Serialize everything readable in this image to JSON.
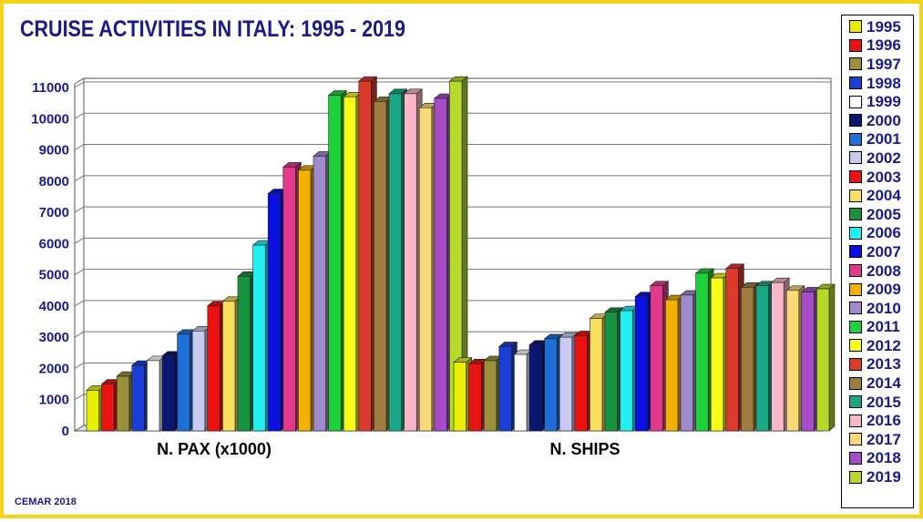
{
  "title": "CRUISE ACTIVITIES IN ITALY: 1995 - 2019",
  "credit": "CEMAR 2018",
  "chart_data": {
    "type": "bar",
    "title": "CRUISE ACTIVITIES IN ITALY: 1995 - 2019",
    "categories": [
      "N. PAX (x1000)",
      "N. SHIPS"
    ],
    "ylim": [
      0,
      11000
    ],
    "yticks": [
      0,
      1000,
      2000,
      3000,
      4000,
      5000,
      6000,
      7000,
      8000,
      9000,
      10000,
      11000
    ],
    "grid": true,
    "legend_position": "right",
    "series": [
      {
        "name": "1995",
        "color": "#e8f000",
        "values": [
          1300,
          2200
        ]
      },
      {
        "name": "1996",
        "color": "#e81414",
        "values": [
          1500,
          2150
        ]
      },
      {
        "name": "1997",
        "color": "#9a8f3a",
        "values": [
          1750,
          2250
        ]
      },
      {
        "name": "1998",
        "color": "#1a3fd6",
        "values": [
          2100,
          2700
        ]
      },
      {
        "name": "1999",
        "color": "#ffffff",
        "values": [
          2250,
          2450
        ]
      },
      {
        "name": "2000",
        "color": "#0c1670",
        "values": [
          2400,
          2750
        ]
      },
      {
        "name": "2001",
        "color": "#1e6fd8",
        "values": [
          3100,
          2950
        ]
      },
      {
        "name": "2002",
        "color": "#c9c9f2",
        "values": [
          3200,
          3000
        ]
      },
      {
        "name": "2003",
        "color": "#ee1111",
        "values": [
          4000,
          3050
        ]
      },
      {
        "name": "2004",
        "color": "#f7de5c",
        "values": [
          4150,
          3600
        ]
      },
      {
        "name": "2005",
        "color": "#17923f",
        "values": [
          4950,
          3800
        ]
      },
      {
        "name": "2006",
        "color": "#22f0f0",
        "values": [
          5950,
          3850
        ]
      },
      {
        "name": "2007",
        "color": "#0a10e0",
        "values": [
          7600,
          4300
        ]
      },
      {
        "name": "2008",
        "color": "#e23a8a",
        "values": [
          8450,
          4650
        ]
      },
      {
        "name": "2009",
        "color": "#f2b000",
        "values": [
          8350,
          4200
        ]
      },
      {
        "name": "2010",
        "color": "#9f8bcc",
        "values": [
          8800,
          4350
        ]
      },
      {
        "name": "2011",
        "color": "#1ed13a",
        "values": [
          10750,
          5050
        ]
      },
      {
        "name": "2012",
        "color": "#f9f91a",
        "values": [
          10700,
          4900
        ]
      },
      {
        "name": "2013",
        "color": "#dc3a2c",
        "values": [
          11200,
          5200
        ]
      },
      {
        "name": "2014",
        "color": "#9e7e40",
        "values": [
          10550,
          4600
        ]
      },
      {
        "name": "2015",
        "color": "#18a883",
        "values": [
          10800,
          4650
        ]
      },
      {
        "name": "2016",
        "color": "#f9b7c8",
        "values": [
          10800,
          4750
        ]
      },
      {
        "name": "2017",
        "color": "#f9d877",
        "values": [
          10350,
          4500
        ]
      },
      {
        "name": "2018",
        "color": "#a64cc8",
        "values": [
          10650,
          4450
        ]
      },
      {
        "name": "2019",
        "color": "#b5d92b",
        "values": [
          11200,
          4550
        ]
      }
    ]
  }
}
